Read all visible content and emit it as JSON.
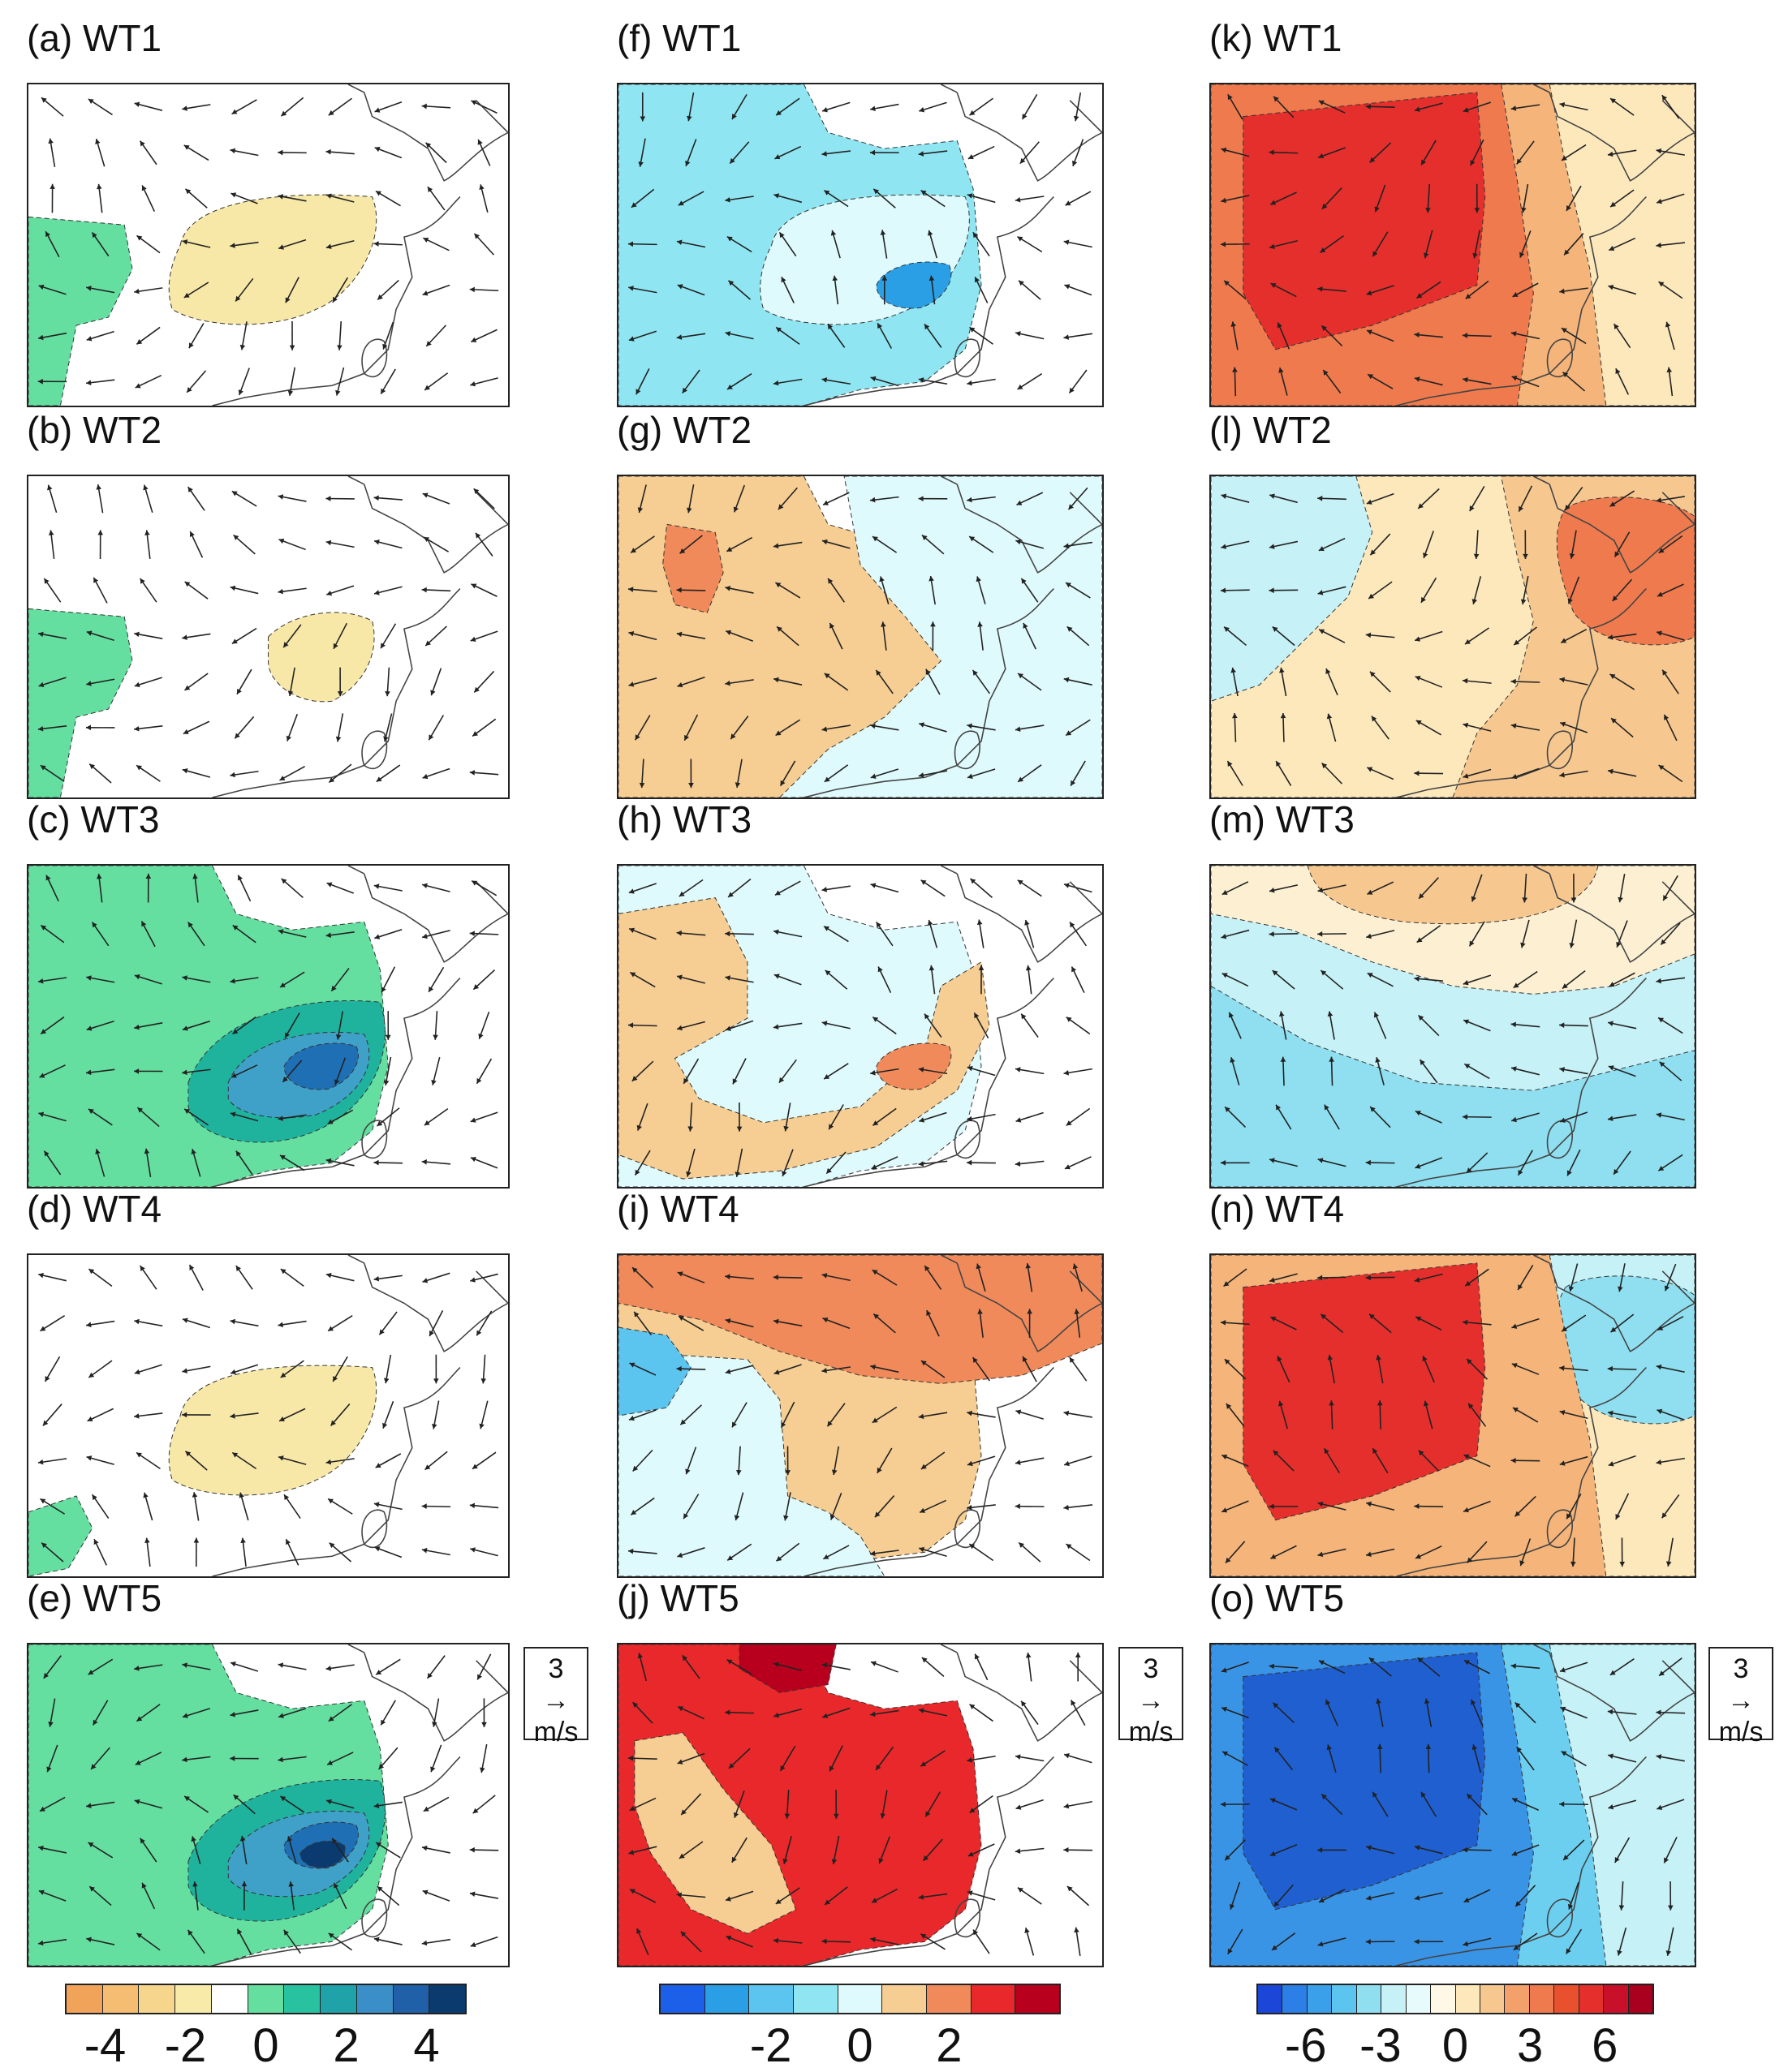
{
  "figure": {
    "panels": [
      {
        "id": "a",
        "label": "(a) WT1",
        "column": 0,
        "row": 0,
        "fields": [
          {
            "color": "#64dfa0",
            "shape": "west"
          },
          {
            "color": "#f7e8a8",
            "shape": "center"
          }
        ]
      },
      {
        "id": "b",
        "label": "(b) WT2",
        "column": 0,
        "row": 1,
        "fields": [
          {
            "color": "#64dfa0",
            "shape": "west"
          },
          {
            "color": "#f7e8a8",
            "shape": "east-small"
          }
        ]
      },
      {
        "id": "c",
        "label": "(c) WT3",
        "column": 0,
        "row": 2,
        "fields": [
          {
            "color": "#64dfa0",
            "shape": "big"
          },
          {
            "color": "#1fb39e",
            "shape": "core1"
          },
          {
            "color": "#3fa0c8",
            "shape": "core2"
          },
          {
            "color": "#1f6fb4",
            "shape": "core3"
          }
        ]
      },
      {
        "id": "d",
        "label": "(d) WT4",
        "column": 0,
        "row": 3,
        "fields": [
          {
            "color": "#f7e8a8",
            "shape": "center"
          },
          {
            "color": "#64dfa0",
            "shape": "sw-corner"
          }
        ]
      },
      {
        "id": "e",
        "label": "(e) WT5",
        "column": 0,
        "row": 4,
        "fields": [
          {
            "color": "#64dfa0",
            "shape": "big"
          },
          {
            "color": "#1fb39e",
            "shape": "core1"
          },
          {
            "color": "#3fa0c8",
            "shape": "core2"
          },
          {
            "color": "#1f6fb4",
            "shape": "core3"
          },
          {
            "color": "#0b3b6e",
            "shape": "core4"
          }
        ]
      },
      {
        "id": "f",
        "label": "(f) WT1",
        "column": 1,
        "row": 0,
        "fields": [
          {
            "color": "#8fe6f2",
            "shape": "big"
          },
          {
            "color": "#dffafc",
            "shape": "center"
          },
          {
            "color": "#2b9fe6",
            "shape": "core3"
          }
        ]
      },
      {
        "id": "g",
        "label": "(g) WT2",
        "column": 1,
        "row": 1,
        "fields": [
          {
            "color": "#f6cd92",
            "shape": "big"
          },
          {
            "color": "#dffafc",
            "shape": "east-coast"
          },
          {
            "color": "#f08a5a",
            "shape": "nw-spot"
          }
        ]
      },
      {
        "id": "h",
        "label": "(h) WT3",
        "column": 1,
        "row": 2,
        "fields": [
          {
            "color": "#dffafc",
            "shape": "big"
          },
          {
            "color": "#f6cd92",
            "shape": "band"
          },
          {
            "color": "#f08a5a",
            "shape": "core3"
          }
        ]
      },
      {
        "id": "i",
        "label": "(i) WT4",
        "column": 1,
        "row": 3,
        "fields": [
          {
            "color": "#f6cd92",
            "shape": "big"
          },
          {
            "color": "#dffafc",
            "shape": "sw-region"
          },
          {
            "color": "#f08a5a",
            "shape": "north-band"
          },
          {
            "color": "#5cc5ef",
            "shape": "west-edge"
          }
        ]
      },
      {
        "id": "j",
        "label": "(j) WT5",
        "column": 1,
        "row": 4,
        "fields": [
          {
            "color": "#e8282a",
            "shape": "big"
          },
          {
            "color": "#f6cd92",
            "shape": "west-inner"
          },
          {
            "color": "#b8001e",
            "shape": "north-spot"
          }
        ]
      },
      {
        "id": "k",
        "label": "(k) WT1",
        "column": 2,
        "row": 0,
        "fields": [
          {
            "color": "#fde8bc",
            "shape": "full"
          },
          {
            "color": "#f4b47a",
            "shape": "west-big"
          },
          {
            "color": "#ee7a4e",
            "shape": "west-mid"
          },
          {
            "color": "#e52f2c",
            "shape": "west-core"
          }
        ]
      },
      {
        "id": "l",
        "label": "(l) WT2",
        "column": 2,
        "row": 1,
        "fields": [
          {
            "color": "#fde8bc",
            "shape": "full"
          },
          {
            "color": "#c6f1f6",
            "shape": "nw-region"
          },
          {
            "color": "#f6c890",
            "shape": "east-big"
          },
          {
            "color": "#ee7a4e",
            "shape": "ne-core"
          }
        ]
      },
      {
        "id": "m",
        "label": "(m) WT3",
        "column": 2,
        "row": 2,
        "fields": [
          {
            "color": "#c6f1f6",
            "shape": "full"
          },
          {
            "color": "#fdf0d2",
            "shape": "north-band"
          },
          {
            "color": "#f6c890",
            "shape": "north-cap"
          },
          {
            "color": "#8fdff0",
            "shape": "south-band"
          }
        ]
      },
      {
        "id": "n",
        "label": "(n) WT4",
        "column": 2,
        "row": 3,
        "fields": [
          {
            "color": "#fde8bc",
            "shape": "full"
          },
          {
            "color": "#c6f1f6",
            "shape": "north-band"
          },
          {
            "color": "#8fdff0",
            "shape": "ne-core"
          },
          {
            "color": "#f4b47a",
            "shape": "west-big"
          },
          {
            "color": "#e52f2c",
            "shape": "west-core"
          }
        ]
      },
      {
        "id": "o",
        "label": "(o) WT5",
        "column": 2,
        "row": 4,
        "fields": [
          {
            "color": "#c6f1f6",
            "shape": "full"
          },
          {
            "color": "#6ccff0",
            "shape": "west-big"
          },
          {
            "color": "#3a94e6",
            "shape": "west-mid"
          },
          {
            "color": "#1f5fd0",
            "shape": "west-core"
          }
        ]
      }
    ],
    "reference_vectors": [
      {
        "id": "ref-col1",
        "value": "3",
        "arrow": "→",
        "unit": "m/s"
      },
      {
        "id": "ref-col2",
        "value": "3",
        "arrow": "→",
        "unit": "m/s"
      },
      {
        "id": "ref-col3",
        "value": "3",
        "arrow": "→",
        "unit": "m/s"
      }
    ],
    "colorbars": [
      {
        "id": "cbar-col1",
        "colors": [
          "#f2a35a",
          "#f4bd72",
          "#f6d58c",
          "#f8eaa8",
          "#ffffff",
          "#64dfa0",
          "#29c2a0",
          "#1fa3a8",
          "#3a8fc8",
          "#1f60a8",
          "#0b3b6e"
        ],
        "ticks": [
          "-4",
          "-2",
          "0",
          "2",
          "4"
        ]
      },
      {
        "id": "cbar-col2",
        "colors": [
          "#1c5fe8",
          "#2b9fe6",
          "#5cc5ef",
          "#8fe6f2",
          "#dffafc",
          "#f6cd92",
          "#f08a5a",
          "#e8282a",
          "#b8001e"
        ],
        "ticks": [
          "-2",
          "0",
          "2"
        ]
      },
      {
        "id": "cbar-col3",
        "colors": [
          "#1c46d8",
          "#2b7fe6",
          "#3aa0ea",
          "#5cc5ef",
          "#8fdff0",
          "#c6f1f6",
          "#e8fbfc",
          "#fff8e6",
          "#fde8bc",
          "#f6c890",
          "#f4a06a",
          "#ee7a4e",
          "#e8502e",
          "#e52f2c",
          "#c8102a",
          "#a8001e"
        ],
        "ticks": [
          "-6",
          "-3",
          "0",
          "3",
          "6"
        ]
      }
    ]
  }
}
